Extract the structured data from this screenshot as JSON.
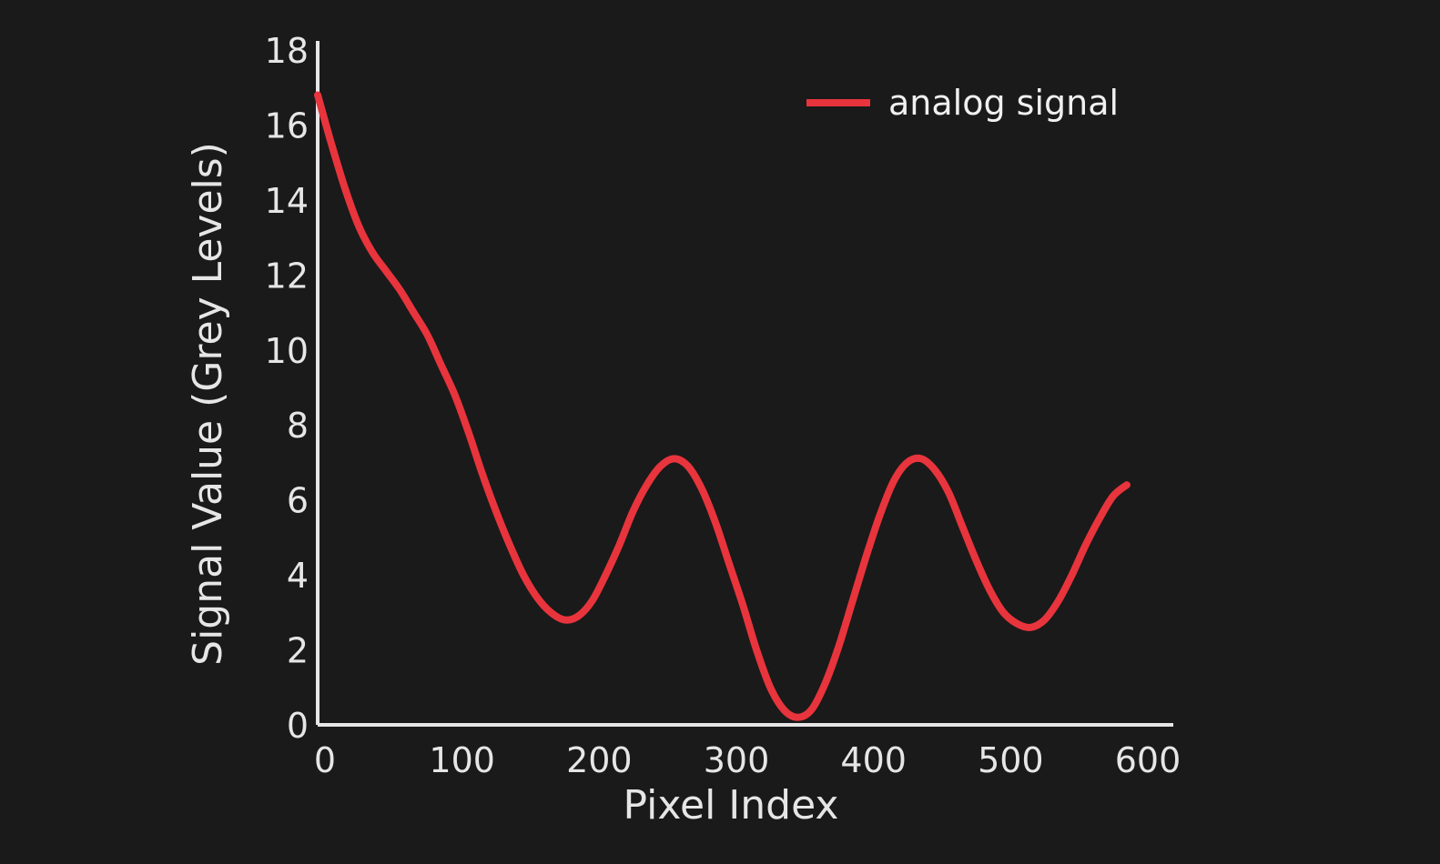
{
  "chart_data": {
    "type": "line",
    "title": "",
    "xlabel": "Pixel Index",
    "ylabel": "Signal Value (Grey Levels)",
    "xlim": [
      0,
      600
    ],
    "ylim": [
      0,
      18
    ],
    "x_ticks": [
      "0",
      "100",
      "200",
      "300",
      "400",
      "500",
      "600"
    ],
    "y_ticks": [
      "0",
      "2",
      "4",
      "6",
      "8",
      "10",
      "12",
      "14",
      "16",
      "18"
    ],
    "grid": false,
    "legend_position": "top-right",
    "series": [
      {
        "name": "analog signal",
        "color": "#e8343c",
        "x": [
          0,
          10,
          20,
          30,
          40,
          50,
          60,
          70,
          80,
          90,
          100,
          110,
          120,
          130,
          140,
          150,
          160,
          170,
          180,
          190,
          200,
          210,
          220,
          230,
          240,
          250,
          260,
          270,
          280,
          290,
          300,
          310,
          320,
          330,
          340,
          350,
          360,
          370,
          380,
          390,
          400,
          410,
          420,
          430,
          440,
          450,
          460,
          470,
          480,
          490,
          500,
          510,
          520,
          530,
          540,
          550,
          560,
          570,
          580,
          590
        ],
        "y": [
          16.8,
          15.5,
          14.3,
          13.3,
          12.6,
          12.1,
          11.6,
          11.0,
          10.4,
          9.6,
          8.8,
          7.8,
          6.7,
          5.7,
          4.8,
          4.0,
          3.4,
          3.0,
          2.8,
          2.9,
          3.3,
          4.0,
          4.8,
          5.7,
          6.4,
          6.9,
          7.1,
          6.9,
          6.3,
          5.4,
          4.3,
          3.2,
          2.0,
          1.0,
          0.4,
          0.2,
          0.4,
          1.1,
          2.1,
          3.3,
          4.5,
          5.6,
          6.5,
          7.0,
          7.1,
          6.8,
          6.2,
          5.3,
          4.4,
          3.6,
          3.0,
          2.7,
          2.6,
          2.8,
          3.3,
          4.0,
          4.8,
          5.5,
          6.1,
          6.4
        ]
      }
    ]
  }
}
